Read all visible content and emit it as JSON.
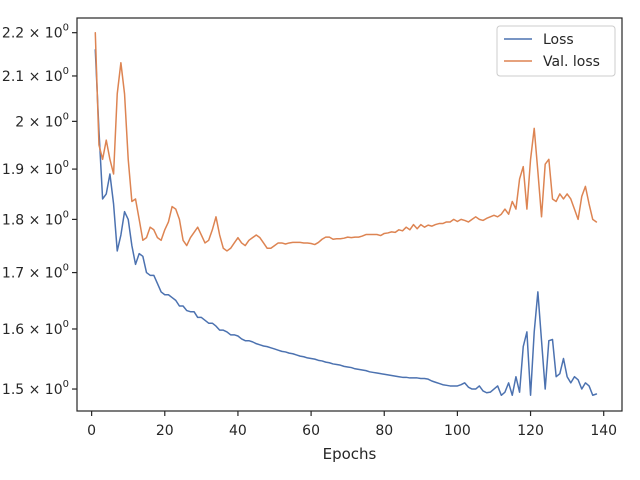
{
  "chart_data": {
    "type": "line",
    "title": "",
    "xlabel": "Epochs",
    "ylabel": "",
    "xlim": [
      -4,
      145
    ],
    "ylim": [
      1.465,
      2.235
    ],
    "yscale": "log",
    "grid": false,
    "legend_position": "top-right",
    "x_ticks": [
      0,
      20,
      40,
      60,
      80,
      100,
      120,
      140
    ],
    "x_tick_labels": [
      "0",
      "20",
      "40",
      "60",
      "80",
      "100",
      "120",
      "140"
    ],
    "y_ticks": [
      1.5,
      1.6,
      1.7,
      1.8,
      1.9,
      2.0,
      2.1,
      2.2
    ],
    "y_tick_labels": [
      {
        "base": "1.5",
        "rest": " × 10",
        "exp": "0"
      },
      {
        "base": "1.6",
        "rest": " × 10",
        "exp": "0"
      },
      {
        "base": "1.7",
        "rest": " × 10",
        "exp": "0"
      },
      {
        "base": "1.8",
        "rest": " × 10",
        "exp": "0"
      },
      {
        "base": "1.9",
        "rest": " × 10",
        "exp": "0"
      },
      {
        "base": "2",
        "rest": " × 10",
        "exp": "0"
      },
      {
        "base": "2.1",
        "rest": " × 10",
        "exp": "0"
      },
      {
        "base": "2.2",
        "rest": " × 10",
        "exp": "0"
      }
    ],
    "series": [
      {
        "name": "Loss",
        "color": "#4c72b0",
        "x": [
          1,
          2,
          3,
          4,
          5,
          6,
          7,
          8,
          9,
          10,
          11,
          12,
          13,
          14,
          15,
          16,
          17,
          18,
          19,
          20,
          21,
          22,
          23,
          24,
          25,
          26,
          27,
          28,
          29,
          30,
          31,
          32,
          33,
          34,
          35,
          36,
          37,
          38,
          39,
          40,
          41,
          42,
          43,
          44,
          45,
          46,
          47,
          48,
          49,
          50,
          51,
          52,
          53,
          54,
          55,
          56,
          57,
          58,
          59,
          60,
          61,
          62,
          63,
          64,
          65,
          66,
          67,
          68,
          69,
          70,
          71,
          72,
          73,
          74,
          75,
          76,
          77,
          78,
          79,
          80,
          81,
          82,
          83,
          84,
          85,
          86,
          87,
          88,
          89,
          90,
          91,
          92,
          93,
          94,
          95,
          96,
          97,
          98,
          99,
          100,
          101,
          102,
          103,
          104,
          105,
          106,
          107,
          108,
          109,
          110,
          111,
          112,
          113,
          114,
          115,
          116,
          117,
          118,
          119,
          120,
          121,
          122,
          123,
          124,
          125,
          126,
          127,
          128,
          129,
          130,
          131,
          132,
          133,
          134,
          135,
          136,
          137,
          138
        ],
        "y": [
          2.16,
          1.98,
          1.84,
          1.85,
          1.89,
          1.83,
          1.74,
          1.77,
          1.815,
          1.8,
          1.75,
          1.715,
          1.735,
          1.73,
          1.7,
          1.695,
          1.695,
          1.68,
          1.665,
          1.66,
          1.66,
          1.655,
          1.65,
          1.64,
          1.64,
          1.632,
          1.63,
          1.63,
          1.62,
          1.62,
          1.615,
          1.61,
          1.61,
          1.605,
          1.598,
          1.598,
          1.595,
          1.59,
          1.59,
          1.588,
          1.583,
          1.58,
          1.58,
          1.578,
          1.575,
          1.573,
          1.571,
          1.57,
          1.568,
          1.566,
          1.564,
          1.562,
          1.561,
          1.559,
          1.558,
          1.556,
          1.554,
          1.553,
          1.551,
          1.55,
          1.549,
          1.547,
          1.546,
          1.544,
          1.543,
          1.541,
          1.54,
          1.539,
          1.537,
          1.536,
          1.535,
          1.533,
          1.532,
          1.531,
          1.53,
          1.528,
          1.527,
          1.526,
          1.525,
          1.524,
          1.523,
          1.522,
          1.521,
          1.52,
          1.519,
          1.519,
          1.518,
          1.518,
          1.518,
          1.517,
          1.517,
          1.516,
          1.513,
          1.511,
          1.509,
          1.507,
          1.506,
          1.505,
          1.505,
          1.505,
          1.507,
          1.51,
          1.503,
          1.5,
          1.5,
          1.505,
          1.497,
          1.494,
          1.495,
          1.5,
          1.505,
          1.49,
          1.495,
          1.51,
          1.49,
          1.52,
          1.495,
          1.57,
          1.595,
          1.49,
          1.595,
          1.665,
          1.58,
          1.5,
          1.58,
          1.582,
          1.52,
          1.525,
          1.55,
          1.52,
          1.51,
          1.52,
          1.515,
          1.5,
          1.51,
          1.505,
          1.49,
          1.492
        ]
      },
      {
        "name": "Val. loss",
        "color": "#dd8452",
        "x": [
          1,
          2,
          3,
          4,
          5,
          6,
          7,
          8,
          9,
          10,
          11,
          12,
          13,
          14,
          15,
          16,
          17,
          18,
          19,
          20,
          21,
          22,
          23,
          24,
          25,
          26,
          27,
          28,
          29,
          30,
          31,
          32,
          33,
          34,
          35,
          36,
          37,
          38,
          39,
          40,
          41,
          42,
          43,
          44,
          45,
          46,
          47,
          48,
          49,
          50,
          51,
          52,
          53,
          54,
          55,
          56,
          57,
          58,
          59,
          60,
          61,
          62,
          63,
          64,
          65,
          66,
          67,
          68,
          69,
          70,
          71,
          72,
          73,
          74,
          75,
          76,
          77,
          78,
          79,
          80,
          81,
          82,
          83,
          84,
          85,
          86,
          87,
          88,
          89,
          90,
          91,
          92,
          93,
          94,
          95,
          96,
          97,
          98,
          99,
          100,
          101,
          102,
          103,
          104,
          105,
          106,
          107,
          108,
          109,
          110,
          111,
          112,
          113,
          114,
          115,
          116,
          117,
          118,
          119,
          120,
          121,
          122,
          123,
          124,
          125,
          126,
          127,
          128,
          129,
          130,
          131,
          132,
          133,
          134,
          135,
          136,
          137,
          138
        ],
        "y": [
          2.2,
          1.95,
          1.92,
          1.96,
          1.92,
          1.89,
          2.06,
          2.13,
          2.06,
          1.92,
          1.835,
          1.84,
          1.8,
          1.76,
          1.765,
          1.785,
          1.78,
          1.765,
          1.76,
          1.78,
          1.795,
          1.825,
          1.82,
          1.8,
          1.76,
          1.75,
          1.765,
          1.775,
          1.785,
          1.77,
          1.755,
          1.76,
          1.78,
          1.805,
          1.77,
          1.745,
          1.74,
          1.745,
          1.755,
          1.765,
          1.755,
          1.75,
          1.76,
          1.765,
          1.77,
          1.765,
          1.755,
          1.745,
          1.745,
          1.75,
          1.755,
          1.755,
          1.753,
          1.755,
          1.756,
          1.756,
          1.756,
          1.755,
          1.755,
          1.754,
          1.752,
          1.756,
          1.762,
          1.766,
          1.766,
          1.762,
          1.763,
          1.763,
          1.764,
          1.766,
          1.765,
          1.766,
          1.766,
          1.768,
          1.771,
          1.771,
          1.771,
          1.771,
          1.769,
          1.773,
          1.774,
          1.776,
          1.775,
          1.78,
          1.778,
          1.785,
          1.78,
          1.79,
          1.782,
          1.79,
          1.785,
          1.789,
          1.787,
          1.79,
          1.792,
          1.792,
          1.795,
          1.795,
          1.8,
          1.796,
          1.8,
          1.798,
          1.795,
          1.8,
          1.805,
          1.8,
          1.798,
          1.802,
          1.805,
          1.808,
          1.805,
          1.81,
          1.82,
          1.81,
          1.835,
          1.82,
          1.88,
          1.905,
          1.82,
          1.92,
          1.985,
          1.895,
          1.805,
          1.91,
          1.92,
          1.84,
          1.835,
          1.85,
          1.84,
          1.85,
          1.84,
          1.82,
          1.8,
          1.845,
          1.865,
          1.83,
          1.8,
          1.795
        ]
      }
    ]
  }
}
